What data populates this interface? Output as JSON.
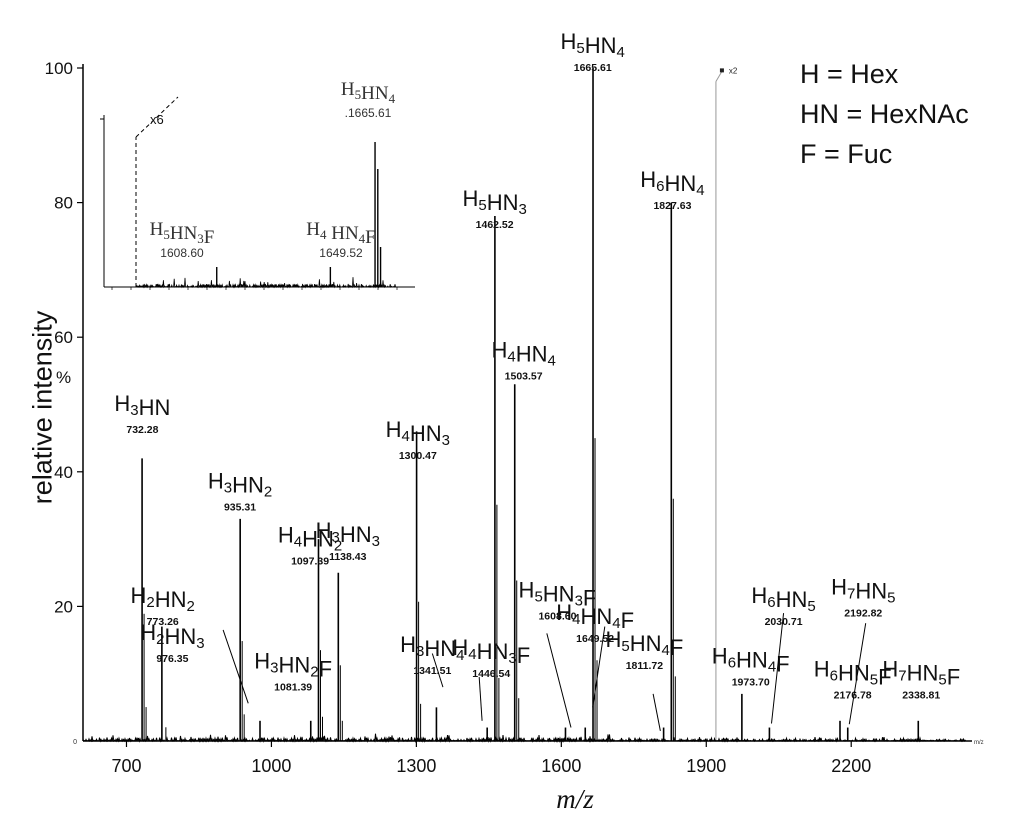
{
  "chart_data": {
    "type": "spectrum",
    "xlabel": "m/z",
    "ylabel": "relative intensity",
    "y_unit": "%",
    "xlim": [
      610,
      2450
    ],
    "ylim": [
      0,
      100
    ],
    "x_ticks": [
      700,
      1000,
      1300,
      1600,
      1900,
      2200
    ],
    "y_ticks": [
      20,
      40,
      60,
      80,
      100
    ],
    "x_axis_end_label": "m/z",
    "zoom_marker": "x2",
    "zoom_marker_x": 1920,
    "legend": [
      "H = Hex",
      "HN = HexNAc",
      "F = Fuc"
    ],
    "peaks": [
      {
        "mz": 732.28,
        "label": "732.28",
        "name": "H3HN",
        "height": 42
      },
      {
        "mz": 773.26,
        "label": "773.26",
        "name": "H2HN2",
        "height": 17
      },
      {
        "mz": 935.31,
        "label": "935.31",
        "name": "H3HN2",
        "height": 33
      },
      {
        "mz": 976.35,
        "label": "976.35",
        "name": "H2HN3",
        "height": 3
      },
      {
        "mz": 1081.39,
        "label": "1081.39",
        "name": "H3HN2F",
        "height": 3
      },
      {
        "mz": 1097.39,
        "label": "1097.39",
        "name": "H4HN2",
        "height": 30
      },
      {
        "mz": 1138.43,
        "label": "1138.43",
        "name": "H3HN3",
        "height": 25
      },
      {
        "mz": 1300.47,
        "label": "1300.47",
        "name": "H4HN3",
        "height": 46
      },
      {
        "mz": 1341.51,
        "label": "1341.51",
        "name": "H3HN4",
        "height": 5
      },
      {
        "mz": 1446.54,
        "label": "1446.54",
        "name": "H4HN3F",
        "height": 2
      },
      {
        "mz": 1462.52,
        "label": "1462.52",
        "name": "H5HN3",
        "height": 78
      },
      {
        "mz": 1503.57,
        "label": "1503.57",
        "name": "H4HN4",
        "height": 53
      },
      {
        "mz": 1608.6,
        "label": "1608.60",
        "name": "H5HN3F",
        "height": 2
      },
      {
        "mz": 1649.52,
        "label": "1649.52",
        "name": "H4HN4F",
        "height": 2
      },
      {
        "mz": 1665.61,
        "label": "1665.61",
        "name": "H5HN4",
        "height": 100
      },
      {
        "mz": 1811.72,
        "label": "1811.72",
        "name": "H5HN4F",
        "height": 2
      },
      {
        "mz": 1827.63,
        "label": "1827.63",
        "name": "H6HN4",
        "height": 80
      },
      {
        "mz": 1973.7,
        "label": "1973.70",
        "name": "H6HN4F",
        "height": 7
      },
      {
        "mz": 2030.71,
        "label": "2030.71",
        "name": "H6HN5",
        "height": 2
      },
      {
        "mz": 2176.78,
        "label": "2176.78",
        "name": "H6HN5F",
        "height": 3
      },
      {
        "mz": 2192.82,
        "label": "2192.82",
        "name": "H7HN5",
        "height": 2
      },
      {
        "mz": 2338.81,
        "label": "2338.81",
        "name": "H7HN5F",
        "height": 3
      }
    ],
    "inset": {
      "zoom": "x6",
      "peaks": [
        {
          "mz": 1608.6,
          "label": "1608.60",
          "name": "H5HN3F"
        },
        {
          "mz": 1649.52,
          "label": "1649.52",
          "name": "H4 HN4F"
        },
        {
          "mz": 1665.61,
          "label": ".1665.61",
          "name": "H5HN4"
        }
      ]
    }
  }
}
